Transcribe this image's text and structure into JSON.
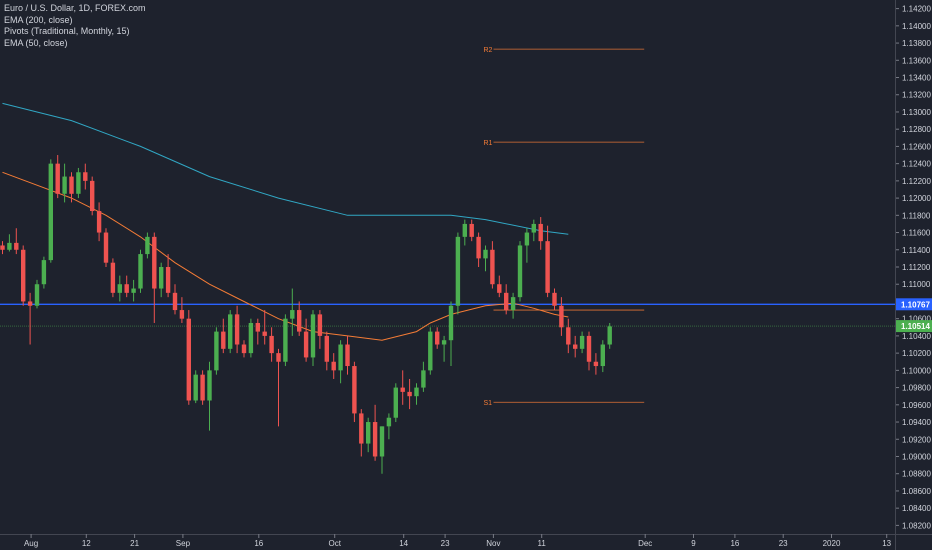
{
  "legend": {
    "symbol": "Euro / U.S. Dollar, 1D, FOREX.com",
    "ema200": "EMA (200, close)",
    "pivots": "Pivots (Traditional, Monthly, 15)",
    "ema50": "EMA (50, close)"
  },
  "chart_data": {
    "type": "candlestick",
    "y_axis": {
      "min": 1.081,
      "max": 1.143,
      "ticks": [
        "1.14200",
        "1.14000",
        "1.13800",
        "1.13600",
        "1.13400",
        "1.13200",
        "1.13000",
        "1.12800",
        "1.12600",
        "1.12400",
        "1.12200",
        "1.12000",
        "1.11800",
        "1.11600",
        "1.11400",
        "1.11200",
        "1.11000",
        "1.10800",
        "1.10600",
        "1.10400",
        "1.10200",
        "1.10000",
        "1.09800",
        "1.09600",
        "1.09400",
        "1.09200",
        "1.09000",
        "1.08800",
        "1.08600",
        "1.08400",
        "1.08200"
      ]
    },
    "x_axis": {
      "labels": [
        {
          "text": "Aug",
          "index": 4
        },
        {
          "text": "12",
          "index": 12
        },
        {
          "text": "21",
          "index": 19
        },
        {
          "text": "Sep",
          "index": 26
        },
        {
          "text": "16",
          "index": 37
        },
        {
          "text": "Oct",
          "index": 48
        },
        {
          "text": "14",
          "index": 58
        },
        {
          "text": "23",
          "index": 64
        },
        {
          "text": "Nov",
          "index": 71
        },
        {
          "text": "11",
          "index": 78
        },
        {
          "text": "Dec",
          "index": 93
        },
        {
          "text": "9",
          "index": 100
        },
        {
          "text": "16",
          "index": 106
        },
        {
          "text": "23",
          "index": 113
        },
        {
          "text": "2020",
          "index": 120
        },
        {
          "text": "13",
          "index": 128
        }
      ]
    },
    "candles": [
      [
        1.1145,
        1.115,
        1.1135,
        1.114
      ],
      [
        1.114,
        1.1158,
        1.1138,
        1.1148
      ],
      [
        1.1148,
        1.1165,
        1.1135,
        1.114
      ],
      [
        1.114,
        1.1145,
        1.1075,
        1.108
      ],
      [
        1.108,
        1.109,
        1.103,
        1.1075
      ],
      [
        1.1075,
        1.1105,
        1.1072,
        1.11
      ],
      [
        1.11,
        1.1132,
        1.1095,
        1.1128
      ],
      [
        1.1128,
        1.1245,
        1.1125,
        1.124
      ],
      [
        1.124,
        1.125,
        1.12,
        1.1205
      ],
      [
        1.1205,
        1.124,
        1.1195,
        1.1225
      ],
      [
        1.1225,
        1.123,
        1.1195,
        1.1205
      ],
      [
        1.1205,
        1.1235,
        1.12,
        1.123
      ],
      [
        1.123,
        1.124,
        1.121,
        1.122
      ],
      [
        1.122,
        1.1225,
        1.118,
        1.1185
      ],
      [
        1.1185,
        1.1195,
        1.115,
        1.116
      ],
      [
        1.116,
        1.1165,
        1.112,
        1.1125
      ],
      [
        1.1125,
        1.113,
        1.1085,
        1.109
      ],
      [
        1.109,
        1.111,
        1.108,
        1.11
      ],
      [
        1.11,
        1.111,
        1.1085,
        1.109
      ],
      [
        1.109,
        1.1105,
        1.108,
        1.1095
      ],
      [
        1.1095,
        1.114,
        1.109,
        1.1135
      ],
      [
        1.1135,
        1.116,
        1.113,
        1.1155
      ],
      [
        1.1155,
        1.116,
        1.1055,
        1.1095
      ],
      [
        1.1095,
        1.1125,
        1.1085,
        1.112
      ],
      [
        1.112,
        1.1135,
        1.1085,
        1.109
      ],
      [
        1.109,
        1.11,
        1.1065,
        1.107
      ],
      [
        1.107,
        1.1085,
        1.1055,
        1.106
      ],
      [
        1.106,
        1.107,
        1.096,
        1.0965
      ],
      [
        1.0965,
        1.1,
        1.0962,
        1.0995
      ],
      [
        1.0995,
        1.1,
        1.096,
        1.0965
      ],
      [
        1.0965,
        1.101,
        1.093,
        1.1
      ],
      [
        1.1,
        1.105,
        1.0995,
        1.1045
      ],
      [
        1.1045,
        1.106,
        1.102,
        1.1025
      ],
      [
        1.1025,
        1.107,
        1.102,
        1.1065
      ],
      [
        1.1065,
        1.1075,
        1.102,
        1.103
      ],
      [
        1.103,
        1.1035,
        1.1015,
        1.102
      ],
      [
        1.102,
        1.106,
        1.1015,
        1.1055
      ],
      [
        1.1055,
        1.106,
        1.103,
        1.1045
      ],
      [
        1.1045,
        1.107,
        1.103,
        1.104
      ],
      [
        1.104,
        1.105,
        1.101,
        1.102
      ],
      [
        1.102,
        1.1025,
        1.0935,
        1.101
      ],
      [
        1.101,
        1.1065,
        1.1005,
        1.106
      ],
      [
        1.106,
        1.1095,
        1.104,
        1.107
      ],
      [
        1.107,
        1.108,
        1.104,
        1.1045
      ],
      [
        1.1045,
        1.106,
        1.101,
        1.1015
      ],
      [
        1.1015,
        1.107,
        1.1005,
        1.1065
      ],
      [
        1.1065,
        1.107,
        1.1025,
        1.104
      ],
      [
        1.104,
        1.1045,
        1.1,
        1.101
      ],
      [
        1.101,
        1.102,
        1.099,
        1.1
      ],
      [
        1.1,
        1.1035,
        1.0985,
        1.103
      ],
      [
        1.103,
        1.104,
        1.0995,
        1.1005
      ],
      [
        1.1005,
        1.101,
        1.094,
        1.095
      ],
      [
        1.095,
        1.0955,
        1.09,
        1.0915
      ],
      [
        1.0915,
        1.0945,
        1.0905,
        1.094
      ],
      [
        1.094,
        1.096,
        1.0895,
        1.09
      ],
      [
        1.09,
        1.0935,
        1.088,
        1.0935
      ],
      [
        1.0935,
        1.095,
        1.092,
        1.0945
      ],
      [
        1.0945,
        1.0985,
        1.094,
        1.098
      ],
      [
        1.098,
        1.1,
        1.096,
        1.0975
      ],
      [
        1.0975,
        1.099,
        1.0955,
        1.097
      ],
      [
        1.097,
        1.0985,
        1.096,
        1.098
      ],
      [
        1.098,
        1.101,
        1.0975,
        1.1
      ],
      [
        1.1,
        1.105,
        1.0995,
        1.1045
      ],
      [
        1.1045,
        1.105,
        1.1025,
        1.103
      ],
      [
        1.103,
        1.104,
        1.101,
        1.1035
      ],
      [
        1.1035,
        1.108,
        1.1005,
        1.1075
      ],
      [
        1.1075,
        1.116,
        1.1065,
        1.1155
      ],
      [
        1.1155,
        1.1175,
        1.1145,
        1.117
      ],
      [
        1.117,
        1.1175,
        1.115,
        1.1155
      ],
      [
        1.1155,
        1.116,
        1.112,
        1.113
      ],
      [
        1.113,
        1.1145,
        1.1115,
        1.114
      ],
      [
        1.114,
        1.115,
        1.1095,
        1.11
      ],
      [
        1.11,
        1.111,
        1.1085,
        1.109
      ],
      [
        1.109,
        1.11,
        1.1065,
        1.107
      ],
      [
        1.107,
        1.109,
        1.106,
        1.1085
      ],
      [
        1.1085,
        1.115,
        1.108,
        1.1145
      ],
      [
        1.1145,
        1.1165,
        1.1125,
        1.116
      ],
      [
        1.116,
        1.1175,
        1.115,
        1.117
      ],
      [
        1.117,
        1.1178,
        1.114,
        1.115
      ],
      [
        1.115,
        1.1168,
        1.1085,
        1.109
      ],
      [
        1.109,
        1.1095,
        1.107,
        1.1075
      ],
      [
        1.1075,
        1.1085,
        1.104,
        1.105
      ],
      [
        1.105,
        1.106,
        1.102,
        1.103
      ],
      [
        1.103,
        1.104,
        1.1015,
        1.1025
      ],
      [
        1.1025,
        1.1045,
        1.102,
        1.104
      ],
      [
        1.104,
        1.1045,
        1.1,
        1.101
      ],
      [
        1.101,
        1.102,
        1.0995,
        1.1005
      ],
      [
        1.1005,
        1.1035,
        1.0998,
        1.103
      ],
      [
        1.103,
        1.1055,
        1.1025,
        1.1051
      ]
    ],
    "ema200": [
      [
        0,
        1.131
      ],
      [
        10,
        1.129
      ],
      [
        20,
        1.126
      ],
      [
        30,
        1.1225
      ],
      [
        40,
        1.12
      ],
      [
        50,
        1.118
      ],
      [
        58,
        1.118
      ],
      [
        65,
        1.118
      ],
      [
        70,
        1.1175
      ],
      [
        78,
        1.1162
      ],
      [
        82,
        1.1158
      ]
    ],
    "ema50": [
      [
        0,
        1.123
      ],
      [
        5,
        1.1215
      ],
      [
        10,
        1.12
      ],
      [
        15,
        1.118
      ],
      [
        20,
        1.1155
      ],
      [
        25,
        1.1125
      ],
      [
        30,
        1.11
      ],
      [
        35,
        1.108
      ],
      [
        40,
        1.106
      ],
      [
        45,
        1.1045
      ],
      [
        50,
        1.104
      ],
      [
        55,
        1.1035
      ],
      [
        60,
        1.1045
      ],
      [
        62,
        1.1055
      ],
      [
        65,
        1.1065
      ],
      [
        70,
        1.1075
      ],
      [
        74,
        1.1078
      ],
      [
        77,
        1.1072
      ],
      [
        80,
        1.1065
      ],
      [
        82,
        1.1062
      ]
    ],
    "pivots": [
      {
        "label": "R2",
        "value": 1.1373
      },
      {
        "label": "R1",
        "value": 1.1265
      },
      {
        "label": "",
        "value": 1.107
      },
      {
        "label": "S1",
        "value": 1.0963
      }
    ],
    "pivot_span": [
      70,
      93
    ],
    "horizontal_line": 1.10767,
    "price_labels": [
      {
        "text": "1.10767",
        "value": 1.10767,
        "color": "#2962ff"
      },
      {
        "text": "1.10514",
        "value": 1.10514,
        "color": "#4caf50"
      }
    ],
    "current_price": 1.10514,
    "colors": {
      "up": "#26a69a",
      "up_real": "#4caf50",
      "down": "#ef5350",
      "ema200": "#31a7c4",
      "ema50": "#f57c36",
      "pivot": "#f57c36",
      "hline": "#2962ff",
      "grid": "#2a2e39",
      "text": "#d1d4dc"
    }
  }
}
